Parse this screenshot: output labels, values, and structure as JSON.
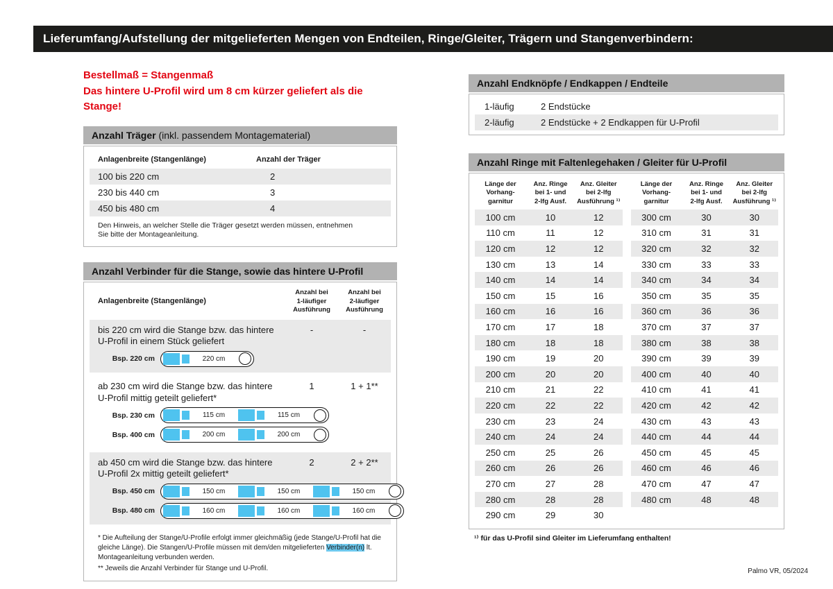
{
  "colors": {
    "header_bar": "#1d1d1b",
    "accent_red": "#e30613",
    "section_bar_gray": "#b2b2b2",
    "row_stripe": "#e9e9e9",
    "connector_cyan": "#4fc3ef",
    "highlight_cyan": "#6ec9ee"
  },
  "header": {
    "title": "Lieferumfang/Aufstellung der mitgelieferten Mengen von Endteilen, Ringe/Gleiter, Trägern und Stangenverbindern:"
  },
  "notice": {
    "line1": "Bestellmaß = Stangenmaß",
    "line2": "Das hintere U-Profil wird um 8 cm kürzer geliefert als die Stange!"
  },
  "traeger": {
    "title_main": "Anzahl Träger",
    "title_suffix": " (inkl. passendem Montagematerial)",
    "col_width": "Anlagenbreite (Stangenlänge)",
    "col_count": "Anzahl der Träger",
    "rows": [
      {
        "range": "100 bis 220 cm",
        "count": "2"
      },
      {
        "range": "230 bis 440 cm",
        "count": "3"
      },
      {
        "range": "450 bis 480 cm",
        "count": "4"
      }
    ],
    "note": "Den Hinweis, an welcher Stelle die Träger gesetzt werden müssen, entnehmen Sie bitte der Montageanleitung."
  },
  "verbinder": {
    "title": "Anzahl Verbinder für die Stange, sowie das hintere U-Profil",
    "col_width": "Anlagenbreite (Stangenlänge)",
    "col_1lfg": "Anzahl bei\n1-läufiger\nAusführung",
    "col_2lfg": "Anzahl bei\n2-läufiger\nAusführung",
    "groups": [
      {
        "desc": "bis 220 cm wird die Stange bzw. das hintere U-Profil in einem Stück geliefert",
        "anz1": "-",
        "anz2": "-",
        "examples": [
          {
            "label": "Bsp. 220 cm",
            "segments": [
              "220 cm"
            ]
          }
        ]
      },
      {
        "desc": "ab 230 cm wird die Stange bzw. das hintere U-Profil mittig geteilt geliefert*",
        "anz1": "1",
        "anz2": "1 + 1**",
        "examples": [
          {
            "label": "Bsp. 230 cm",
            "segments": [
              "115 cm",
              "115 cm"
            ]
          },
          {
            "label": "Bsp. 400 cm",
            "segments": [
              "200 cm",
              "200 cm"
            ]
          }
        ]
      },
      {
        "desc": "ab 450 cm wird die Stange bzw. das hintere U-Profil 2x mittig geteilt geliefert*",
        "anz1": "2",
        "anz2": "2 + 2**",
        "examples": [
          {
            "label": "Bsp. 450 cm",
            "segments": [
              "150 cm",
              "150 cm",
              "150 cm"
            ]
          },
          {
            "label": "Bsp. 480 cm",
            "segments": [
              "160 cm",
              "160 cm",
              "160 cm"
            ]
          }
        ]
      }
    ],
    "footnote1_pre": "* Die Aufteilung der Stange/U-Profile erfolgt immer gleichmäßig (jede Stange/U-Profil hat die gleiche Länge). Die Stangen/U-Profile müssen mit dem/den mitgelieferten ",
    "footnote1_highlight": "Verbinder(n)",
    "footnote1_post": " lt. Montageanleitung verbunden werden.",
    "footnote2": "** Jeweils die Anzahl Verbinder für Stange und U-Profil."
  },
  "endteile": {
    "title": "Anzahl Endknöpfe / Endkappen / Endteile",
    "rows": [
      {
        "variant": "1-läufig",
        "parts": "2 Endstücke"
      },
      {
        "variant": "2-läufig",
        "parts": "2 Endstücke + 2 Endkappen für U-Profil"
      }
    ]
  },
  "ringe": {
    "title": "Anzahl Ringe mit Faltenlegehaken / Gleiter für U-Profil",
    "col_len": "Länge der\nVorhang-\ngarnitur",
    "col_ringe": "Anz. Ringe\nbei 1- und\n2-lfg Ausf.",
    "col_gleiter": "Anz. Gleiter\nbei 2-lfg\nAusführung ¹⁾",
    "left_rows": [
      {
        "len": "100 cm",
        "r": "10",
        "g": "12"
      },
      {
        "len": "110 cm",
        "r": "11",
        "g": "12"
      },
      {
        "len": "120 cm",
        "r": "12",
        "g": "12"
      },
      {
        "len": "130 cm",
        "r": "13",
        "g": "14"
      },
      {
        "len": "140 cm",
        "r": "14",
        "g": "14"
      },
      {
        "len": "150 cm",
        "r": "15",
        "g": "16"
      },
      {
        "len": "160 cm",
        "r": "16",
        "g": "16"
      },
      {
        "len": "170 cm",
        "r": "17",
        "g": "18"
      },
      {
        "len": "180 cm",
        "r": "18",
        "g": "18"
      },
      {
        "len": "190 cm",
        "r": "19",
        "g": "20"
      },
      {
        "len": "200 cm",
        "r": "20",
        "g": "20"
      },
      {
        "len": "210 cm",
        "r": "21",
        "g": "22"
      },
      {
        "len": "220 cm",
        "r": "22",
        "g": "22"
      },
      {
        "len": "230 cm",
        "r": "23",
        "g": "24"
      },
      {
        "len": "240 cm",
        "r": "24",
        "g": "24"
      },
      {
        "len": "250 cm",
        "r": "25",
        "g": "26"
      },
      {
        "len": "260 cm",
        "r": "26",
        "g": "26"
      },
      {
        "len": "270 cm",
        "r": "27",
        "g": "28"
      },
      {
        "len": "280 cm",
        "r": "28",
        "g": "28"
      },
      {
        "len": "290 cm",
        "r": "29",
        "g": "30"
      }
    ],
    "right_rows": [
      {
        "len": "300 cm",
        "r": "30",
        "g": "30"
      },
      {
        "len": "310 cm",
        "r": "31",
        "g": "31"
      },
      {
        "len": "320 cm",
        "r": "32",
        "g": "32"
      },
      {
        "len": "330 cm",
        "r": "33",
        "g": "33"
      },
      {
        "len": "340 cm",
        "r": "34",
        "g": "34"
      },
      {
        "len": "350 cm",
        "r": "35",
        "g": "35"
      },
      {
        "len": "360 cm",
        "r": "36",
        "g": "36"
      },
      {
        "len": "370 cm",
        "r": "37",
        "g": "37"
      },
      {
        "len": "380 cm",
        "r": "38",
        "g": "38"
      },
      {
        "len": "390 cm",
        "r": "39",
        "g": "39"
      },
      {
        "len": "400 cm",
        "r": "40",
        "g": "40"
      },
      {
        "len": "410 cm",
        "r": "41",
        "g": "41"
      },
      {
        "len": "420 cm",
        "r": "42",
        "g": "42"
      },
      {
        "len": "430 cm",
        "r": "43",
        "g": "43"
      },
      {
        "len": "440 cm",
        "r": "44",
        "g": "44"
      },
      {
        "len": "450 cm",
        "r": "45",
        "g": "45"
      },
      {
        "len": "460 cm",
        "r": "46",
        "g": "46"
      },
      {
        "len": "470 cm",
        "r": "47",
        "g": "47"
      },
      {
        "len": "480 cm",
        "r": "48",
        "g": "48"
      }
    ],
    "footnote": "¹⁾ für das U-Profil sind Gleiter im Lieferumfang enthalten!"
  },
  "footer": {
    "text": "Palmo VR, 05/2024"
  }
}
